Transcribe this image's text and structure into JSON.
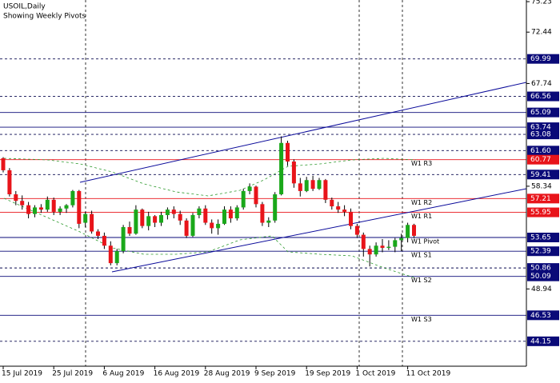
{
  "chart_data": {
    "type": "candlestick",
    "title": "USOIL,Daily",
    "subtitle": "Showing Weekly Pivots",
    "categories": [
      "15 Jul 2019",
      null,
      null,
      null,
      null,
      null,
      null,
      null,
      "25 Jul 2019",
      null,
      null,
      null,
      null,
      null,
      null,
      null,
      "6 Aug 2019",
      null,
      null,
      null,
      null,
      null,
      null,
      null,
      "16 Aug 2019",
      null,
      null,
      null,
      null,
      null,
      null,
      null,
      "28 Aug 2019",
      null,
      null,
      null,
      null,
      null,
      null,
      null,
      "9 Sep 2019",
      null,
      null,
      null,
      null,
      null,
      null,
      null,
      "19 Sep 2019",
      null,
      null,
      null,
      null,
      null,
      null,
      null,
      "1 Oct 2019",
      null,
      null,
      null,
      null,
      null,
      null,
      null,
      "11 Oct 2019",
      null
    ],
    "open": [
      60.9,
      59.8,
      57.6,
      57.0,
      56.6,
      55.8,
      56.4,
      56.2,
      57.1,
      56.0,
      56.3,
      56.6,
      57.9,
      55.0,
      55.8,
      54.2,
      53.8,
      52.9,
      51.3,
      52.4,
      54.6,
      54.0,
      56.2,
      54.7,
      55.6,
      55.0,
      55.7,
      56.2,
      55.8,
      55.2,
      53.8,
      55.7,
      56.3,
      55.0,
      54.5,
      54.9,
      56.2,
      55.4,
      56.4,
      57.9,
      58.3,
      56.7,
      55.0,
      55.2,
      57.6,
      62.3,
      60.6,
      58.6,
      57.9,
      58.9,
      58.1,
      58.9,
      57.1,
      56.5,
      56.2,
      56.0,
      54.7,
      53.9,
      52.6,
      52.1,
      52.9,
      52.7,
      52.8,
      53.4,
      53.6,
      54.8
    ],
    "high": [
      61.0,
      60.0,
      57.9,
      57.5,
      56.9,
      56.6,
      56.7,
      57.4,
      57.3,
      56.5,
      56.7,
      58.0,
      58.0,
      56.0,
      56.1,
      54.4,
      54.1,
      53.3,
      52.6,
      54.8,
      55.1,
      56.6,
      56.3,
      56.0,
      55.7,
      56.0,
      56.4,
      56.5,
      56.1,
      55.4,
      55.9,
      56.5,
      56.6,
      55.3,
      55.3,
      56.5,
      56.5,
      56.6,
      58.1,
      58.6,
      58.4,
      56.9,
      55.5,
      57.8,
      62.9,
      62.5,
      60.8,
      59.1,
      59.2,
      59.3,
      59.1,
      59.0,
      57.3,
      56.9,
      56.6,
      56.3,
      54.9,
      54.1,
      52.9,
      53.2,
      53.5,
      53.4,
      53.6,
      54.0,
      55.0,
      54.9
    ],
    "low": [
      59.6,
      57.4,
      56.6,
      56.2,
      55.4,
      55.5,
      55.9,
      56.0,
      55.7,
      55.7,
      55.9,
      56.4,
      54.5,
      54.6,
      54.0,
      53.5,
      52.6,
      51.1,
      51.1,
      52.2,
      53.8,
      53.9,
      54.5,
      54.3,
      54.6,
      54.7,
      55.3,
      55.4,
      54.8,
      53.6,
      53.7,
      55.4,
      54.8,
      54.0,
      53.9,
      54.8,
      55.0,
      55.2,
      56.2,
      57.6,
      56.4,
      54.7,
      54.6,
      55.0,
      57.5,
      60.2,
      58.2,
      57.4,
      57.8,
      57.9,
      58.0,
      56.8,
      56.2,
      55.9,
      55.6,
      54.4,
      53.6,
      51.9,
      51.0,
      51.9,
      52.3,
      52.5,
      52.3,
      52.4,
      53.2,
      53.6
    ],
    "close": [
      59.8,
      57.6,
      57.0,
      56.6,
      55.8,
      56.4,
      56.2,
      57.1,
      56.0,
      56.3,
      56.6,
      57.9,
      54.9,
      55.8,
      54.2,
      53.8,
      52.9,
      51.3,
      52.4,
      54.6,
      54.0,
      56.2,
      54.7,
      55.6,
      55.0,
      55.7,
      56.2,
      55.8,
      55.2,
      53.8,
      55.7,
      56.3,
      55.0,
      54.5,
      54.9,
      56.2,
      55.4,
      56.4,
      57.9,
      58.3,
      56.7,
      55.0,
      55.2,
      57.6,
      62.3,
      60.6,
      58.6,
      57.9,
      58.9,
      58.1,
      58.9,
      57.1,
      56.5,
      56.2,
      56.0,
      54.7,
      53.9,
      52.6,
      52.1,
      52.9,
      52.7,
      52.8,
      53.4,
      53.6,
      54.8,
      53.8
    ],
    "up_color": "#1aa81a",
    "down_color": "#e8141a",
    "ylim": [
      41.87,
      75.38
    ],
    "yticks": [
      75.23,
      72.44,
      67.74,
      58.34,
      48.94
    ],
    "levels": [
      {
        "value": 69.99,
        "color": "#0a0a78",
        "style": "dashed"
      },
      {
        "value": 66.56,
        "color": "#0a0a78",
        "style": "dashed"
      },
      {
        "value": 65.09,
        "color": "#0a0a78",
        "style": "solid"
      },
      {
        "value": 63.74,
        "color": "#0a0a78",
        "style": "solid"
      },
      {
        "value": 63.08,
        "color": "#0a0a78",
        "style": "dashed"
      },
      {
        "value": 61.6,
        "label": "61.60",
        "color": "#0a0a78",
        "style": "dashed"
      },
      {
        "name": "W1 R3",
        "value": 60.77,
        "color": "#e8141a",
        "style": "solid"
      },
      {
        "value": 59.41,
        "color": "#0a0a78",
        "style": "dashed"
      },
      {
        "name": "W1 R2",
        "value": 57.21,
        "color": "#e8141a",
        "style": "solid"
      },
      {
        "name": "W1 R1",
        "value": 55.95,
        "color": "#e8141a",
        "style": "solid"
      },
      {
        "name": "W1 Pivot",
        "value": 53.65,
        "color": "#0a0a78",
        "style": "solid"
      },
      {
        "name": "W1 S1",
        "value": 52.39,
        "color": "#0a0a78",
        "style": "solid"
      },
      {
        "value": 50.86,
        "color": "#0a0a78",
        "style": "dashed"
      },
      {
        "name": "W1 S2",
        "value": 50.09,
        "color": "#0a0a78",
        "style": "solid"
      },
      {
        "name": "W1 S3",
        "value": 46.53,
        "color": "#0a0a78",
        "style": "solid"
      },
      {
        "value": 44.15,
        "color": "#0a0a78",
        "style": "dashed"
      }
    ]
  }
}
